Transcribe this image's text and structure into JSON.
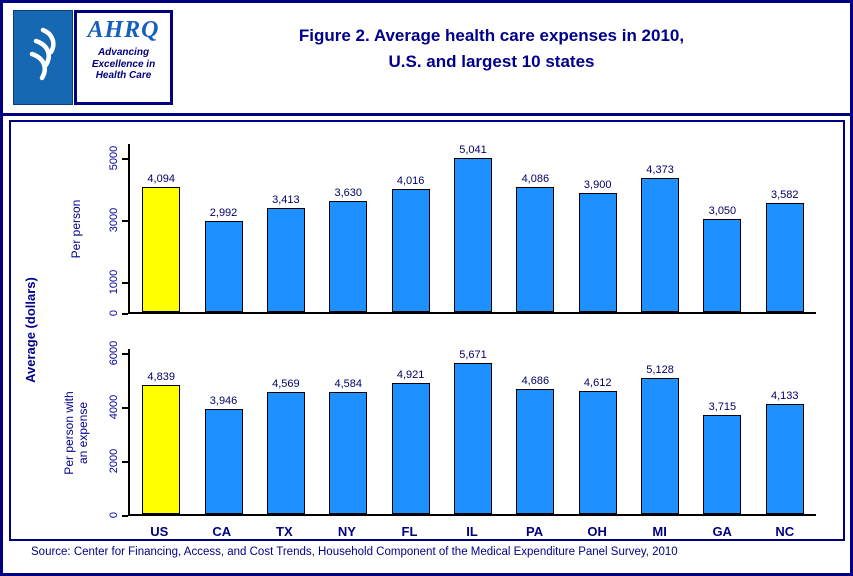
{
  "header": {
    "logo": {
      "hhs_icon": "hhs-eagle-logo",
      "ahrq": "AHRQ",
      "tagline_lines": [
        "Advancing",
        "Excellence in",
        "Health Care"
      ]
    },
    "title_line1": "Figure 2. Average health care expenses in 2010,",
    "title_line2": "U.S. and largest 10 states"
  },
  "chart_meta": {
    "shared_ylabel": "Average (dollars)"
  },
  "colors": {
    "bar": "#1E90FF",
    "highlight_bar": "#FFFF00",
    "navy": "#00008B"
  },
  "chart_data": [
    {
      "type": "bar",
      "ylabel": "Per person",
      "categories": [
        "US",
        "CA",
        "TX",
        "NY",
        "FL",
        "IL",
        "PA",
        "OH",
        "MI",
        "GA",
        "NC"
      ],
      "values": [
        4094,
        2992,
        3413,
        3630,
        4016,
        5041,
        4086,
        3900,
        4373,
        3050,
        3582
      ],
      "labels": [
        "4,094",
        "2,992",
        "3,413",
        "3,630",
        "4,016",
        "5,041",
        "4,086",
        "3,900",
        "4,373",
        "3,050",
        "3,582"
      ],
      "ylim": [
        0,
        5500
      ],
      "yticks": [
        0,
        1000,
        3000,
        5000
      ],
      "highlight_index": 0,
      "grid": false,
      "legend": false
    },
    {
      "type": "bar",
      "ylabel": "Per person with\nan expense",
      "categories": [
        "US",
        "CA",
        "TX",
        "NY",
        "FL",
        "IL",
        "PA",
        "OH",
        "MI",
        "GA",
        "NC"
      ],
      "values": [
        4839,
        3946,
        4569,
        4584,
        4921,
        5671,
        4686,
        4612,
        5128,
        3715,
        4133
      ],
      "labels": [
        "4,839",
        "3,946",
        "4,569",
        "4,584",
        "4,921",
        "5,671",
        "4,686",
        "4,612",
        "5,128",
        "3,715",
        "4,133"
      ],
      "ylim": [
        0,
        6200
      ],
      "yticks": [
        0,
        2000,
        4000,
        6000
      ],
      "highlight_index": 0,
      "grid": false,
      "legend": false
    }
  ],
  "source": "Source: Center for Financing, Access, and Cost Trends, Household Component of the Medical Expenditure Panel Survey, 2010"
}
